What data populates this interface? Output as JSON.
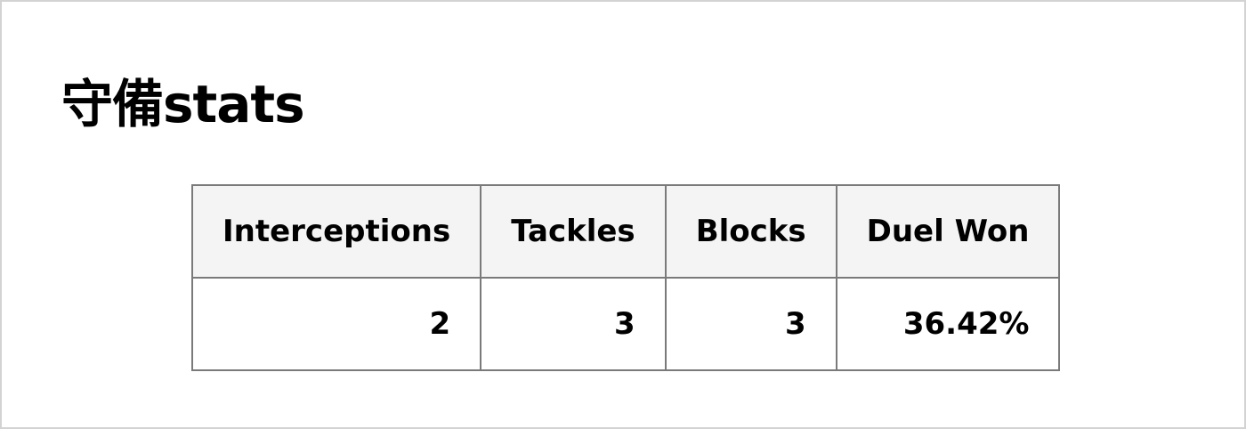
{
  "title": "守備stats",
  "table": {
    "headers": [
      "Interceptions",
      "Tackles",
      "Blocks",
      "Duel Won"
    ],
    "rows": [
      [
        "2",
        "3",
        "3",
        "36.42%"
      ]
    ]
  },
  "colors": {
    "header_bg": "#f4f4f4",
    "border": "#7a7a7a",
    "frame_border": "#d3d3d3",
    "text": "#000000"
  }
}
